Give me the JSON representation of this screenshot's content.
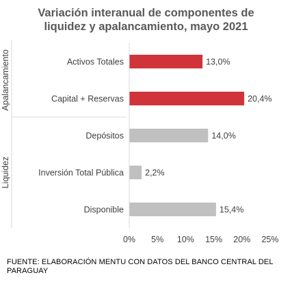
{
  "chart_data": {
    "type": "bar",
    "orientation": "horizontal",
    "title_line1": "Variación interanual de componentes de",
    "title_line2": "liquidez y apalancamiento, mayo 2021",
    "groups": [
      {
        "name": "Apalancamiento",
        "color": "#d0343a",
        "categories": [
          "Activos Totales",
          "Capital + Reservas"
        ],
        "values": [
          13.0,
          20.4
        ],
        "labels": [
          "13,0%",
          "20,4%"
        ]
      },
      {
        "name": "Liquidez",
        "color": "#c0c0c0",
        "categories": [
          "Depósitos",
          "Inversión Total Pública",
          "Disponible"
        ],
        "values": [
          14.0,
          2.2,
          15.4
        ],
        "labels": [
          "14,0%",
          "2,2%",
          "15,4%"
        ]
      }
    ],
    "xlim": [
      0,
      25
    ],
    "xticks": [
      0,
      5,
      10,
      15,
      20,
      25
    ],
    "xtick_labels": [
      "0%",
      "5%",
      "10%",
      "15%",
      "20%",
      "25%"
    ],
    "grid": false,
    "legend": "none"
  },
  "source": "FUENTE: ELABORACIÓN MENTU CON DATOS DEL BANCO CENTRAL DEL PARAGUAY"
}
